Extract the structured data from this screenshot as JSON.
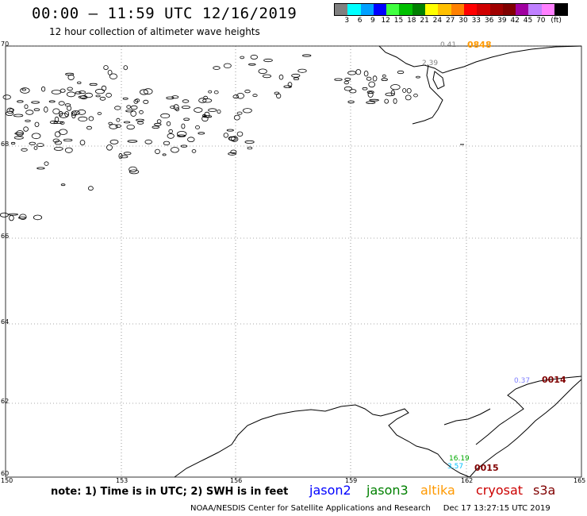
{
  "title": "00:00 – 11:59 UTC 12/16/2019",
  "subtitle": "12 hour collection of altimeter wave heights",
  "legend": {
    "colors": [
      "#808080",
      "#00ffff",
      "#00a0ff",
      "#0000ff",
      "#40ff40",
      "#00c000",
      "#008000",
      "#ffff00",
      "#ffc000",
      "#ff8000",
      "#ff0000",
      "#d00000",
      "#a00000",
      "#800000",
      "#a000a0",
      "#c080ff",
      "#ff80ff",
      "#000000"
    ],
    "labels": [
      "3",
      "6",
      "9",
      "12",
      "15",
      "18",
      "21",
      "24",
      "27",
      "30",
      "33",
      "36",
      "39",
      "42",
      "45",
      "70",
      "(ft)"
    ]
  },
  "map": {
    "lat_labels": [
      "70",
      "68",
      "66",
      "64",
      "62",
      "60"
    ],
    "lon_labels": [
      "150",
      "153",
      "156",
      "159",
      "162",
      "165"
    ],
    "lat_range": [
      60,
      70
    ],
    "lon_range": [
      150,
      165
    ]
  },
  "passes": [
    {
      "label": "0848",
      "color": "#ff9900"
    },
    {
      "label": "0014",
      "color": "#800000"
    },
    {
      "label": "0015",
      "color": "#800000"
    }
  ],
  "values": [
    {
      "label": "0.41",
      "color": "#808080"
    },
    {
      "label": "2.39",
      "color": "#808080"
    },
    {
      "label": "16.19",
      "color": "#00aa00"
    },
    {
      "label": "3.57",
      "color": "#00c0ff"
    },
    {
      "label": "0.37",
      "color": "#8080ff"
    }
  ],
  "note": "note: 1) Time is in UTC; 2) SWH is in feet",
  "satellites": [
    {
      "name": "jason2",
      "color": "#0000ff"
    },
    {
      "name": "jason3",
      "color": "#008000"
    },
    {
      "name": "altika",
      "color": "#ff9900"
    },
    {
      "name": "cryosat",
      "color": "#cc0000"
    },
    {
      "name": "s3a",
      "color": "#800000"
    }
  ],
  "footer": "NOAA/NESDIS Center for Satellite Applications and Research     Dec 17 13:27:15 UTC 2019"
}
